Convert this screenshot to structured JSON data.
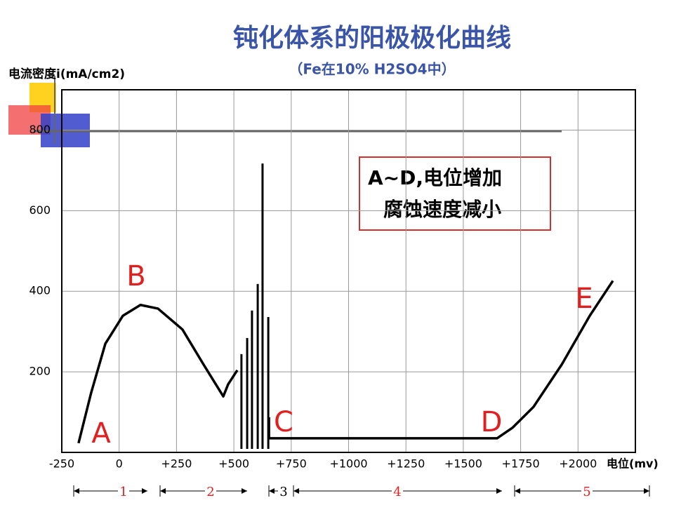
{
  "chart_data": {
    "type": "line",
    "title": "钝化体系的阳极极化曲线",
    "subtitle": "（Fe在10% H2SO4中）",
    "y_label": "电流密度i(mA/cm2)",
    "x_label": "电位(mv)",
    "xlim": [
      -250,
      2250
    ],
    "ylim": [
      0,
      900
    ],
    "xticks": [
      -250,
      0,
      {
        "value": 250,
        "label": "+250"
      },
      {
        "value": 500,
        "label": "+500"
      },
      {
        "value": 750,
        "label": "+750"
      },
      {
        "value": 1000,
        "label": "+1000"
      },
      {
        "value": 1250,
        "label": "+1250"
      },
      {
        "value": 1500,
        "label": "+1500"
      },
      {
        "value": 1750,
        "label": "+1750"
      },
      {
        "value": 2000,
        "label": "+2000"
      }
    ],
    "yticks": [
      200,
      400,
      600,
      800
    ],
    "grid": true,
    "series": [
      {
        "color": "#000000",
        "x": [
          -177,
          -122,
          -60,
          16,
          93,
          169,
          276,
          368,
          454,
          475,
          515,
          null,
          653,
          653,
          1647,
          1714,
          1806,
          1929,
          2051,
          2152
        ],
        "y": [
          23,
          148,
          270,
          339,
          366,
          357,
          305,
          218,
          139,
          169,
          204,
          null,
          87,
          35,
          35,
          61,
          113,
          218,
          339,
          426
        ]
      }
    ],
    "spikes": {
      "color": "#000000",
      "x": [
        533,
        558,
        579,
        604,
        625,
        650
      ],
      "y": [
        244,
        284,
        352,
        418,
        717,
        336
      ]
    },
    "annotations": [
      "A",
      "B",
      "C",
      "D",
      "E"
    ],
    "note": [
      "A~D,电位增加",
      "腐蚀速度减小"
    ],
    "regions": [
      "1",
      "2",
      "3",
      "4",
      "5"
    ]
  }
}
